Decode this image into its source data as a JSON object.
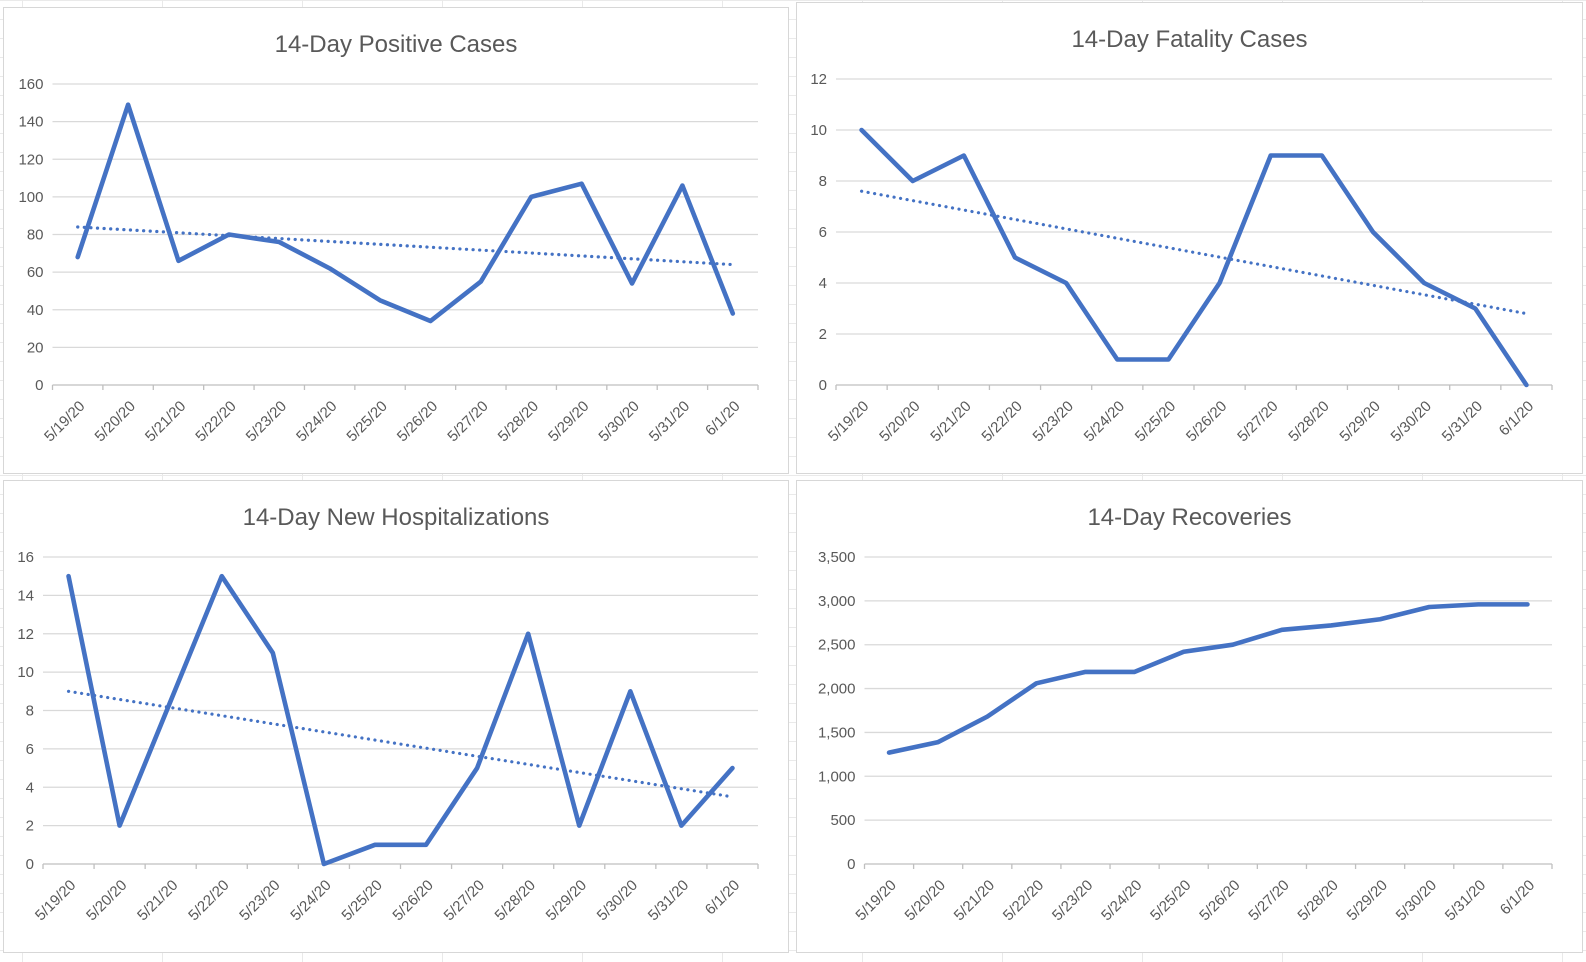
{
  "colors": {
    "series_blue": "#4472C4",
    "trendline_blue": "#4472C4",
    "gridline": "#D9D9D9",
    "axis_line": "#BFBFBF",
    "tick_label": "#595959",
    "title": "#595959",
    "panel_border": "#D7D7D7",
    "sheet_gridline": "#E9E9E9"
  },
  "chart_data": [
    {
      "type": "line",
      "title": "14-Day Positive Cases",
      "categories": [
        "5/19/20",
        "5/20/20",
        "5/21/20",
        "5/22/20",
        "5/23/20",
        "5/24/20",
        "5/25/20",
        "5/26/20",
        "5/27/20",
        "5/28/20",
        "5/29/20",
        "5/30/20",
        "5/31/20",
        "6/1/20"
      ],
      "values": [
        68,
        149,
        66,
        80,
        76,
        62,
        45,
        34,
        55,
        100,
        107,
        54,
        106,
        38
      ],
      "trendline": {
        "style": "dotted",
        "start": 84,
        "end": 64
      },
      "yticks": [
        "160",
        "140",
        "120",
        "100",
        "80",
        "60",
        "40",
        "20",
        "0"
      ],
      "ylim": [
        0,
        160
      ],
      "ystep": 20,
      "grid": true,
      "legend": "none",
      "x_tick_rotation_deg": 45
    },
    {
      "type": "line",
      "title": "14-Day Fatality Cases",
      "categories": [
        "5/19/20",
        "5/20/20",
        "5/21/20",
        "5/22/20",
        "5/23/20",
        "5/24/20",
        "5/25/20",
        "5/26/20",
        "5/27/20",
        "5/28/20",
        "5/29/20",
        "5/30/20",
        "5/31/20",
        "6/1/20"
      ],
      "values": [
        10,
        8,
        9,
        5,
        4,
        1,
        1,
        4,
        9,
        9,
        6,
        4,
        3,
        0
      ],
      "trendline": {
        "style": "dotted",
        "start": 7.6,
        "end": 2.8
      },
      "yticks": [
        "12",
        "10",
        "8",
        "6",
        "4",
        "2",
        "0"
      ],
      "ylim": [
        0,
        12
      ],
      "ystep": 2,
      "grid": true,
      "legend": "none",
      "x_tick_rotation_deg": 45
    },
    {
      "type": "line",
      "title": "14-Day New Hospitalizations",
      "categories": [
        "5/19/20",
        "5/20/20",
        "5/21/20",
        "5/22/20",
        "5/23/20",
        "5/24/20",
        "5/25/20",
        "5/26/20",
        "5/27/20",
        "5/28/20",
        "5/29/20",
        "5/30/20",
        "5/31/20",
        "6/1/20"
      ],
      "values": [
        15,
        2,
        8.5,
        15,
        11,
        0,
        1,
        1,
        5,
        12,
        2,
        9,
        2,
        5
      ],
      "trendline": {
        "style": "dotted",
        "start": 9,
        "end": 3.5
      },
      "yticks": [
        "16",
        "14",
        "12",
        "10",
        "8",
        "6",
        "4",
        "2",
        "0"
      ],
      "ylim": [
        0,
        16
      ],
      "ystep": 2,
      "grid": true,
      "legend": "none",
      "x_tick_rotation_deg": 45
    },
    {
      "type": "line",
      "title": "14-Day Recoveries",
      "categories": [
        "5/19/20",
        "5/20/20",
        "5/21/20",
        "5/22/20",
        "5/23/20",
        "5/24/20",
        "5/25/20",
        "5/26/20",
        "5/27/20",
        "5/28/20",
        "5/29/20",
        "5/30/20",
        "5/31/20",
        "6/1/20"
      ],
      "values": [
        1270,
        1390,
        1680,
        2060,
        2190,
        2190,
        2420,
        2500,
        2670,
        2720,
        2790,
        2930,
        2960,
        2960
      ],
      "trendline": null,
      "yticks": [
        "3,500",
        "3,000",
        "2,500",
        "2,000",
        "1,500",
        "1,000",
        "500",
        "0"
      ],
      "ylim": [
        0,
        3500
      ],
      "ystep": 500,
      "grid": true,
      "legend": "none",
      "x_tick_rotation_deg": 45
    }
  ]
}
